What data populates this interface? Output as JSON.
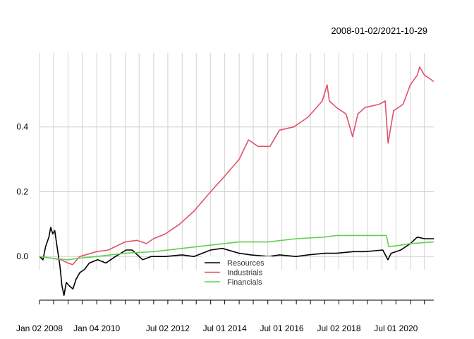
{
  "chart_data": {
    "type": "line",
    "title": "2008-01-02/2021-10-29",
    "xlabel": "",
    "ylabel": "",
    "x_range": [
      "2008-01-02",
      "2021-10-29"
    ],
    "ylim": [
      -0.15,
      0.6
    ],
    "grid": true,
    "legend_position": "bottom-center",
    "y_ticks": [
      {
        "value": 0.0,
        "label": "0.0"
      },
      {
        "value": 0.2,
        "label": "0.2"
      },
      {
        "value": 0.4,
        "label": "0.4"
      }
    ],
    "x_tick_labels": [
      {
        "date": "2008-01-02",
        "label": "Jan 02 2008"
      },
      {
        "date": "2010-01-04",
        "label": "Jan 04 2010"
      },
      {
        "date": "2012-07-02",
        "label": "Jul 02 2012"
      },
      {
        "date": "2014-07-01",
        "label": "Jul 01 2014"
      },
      {
        "date": "2016-07-01",
        "label": "Jul 01 2016"
      },
      {
        "date": "2018-07-02",
        "label": "Jul 02 2018"
      },
      {
        "date": "2020-07-01",
        "label": "Jul 01 2020"
      }
    ],
    "x_grid_dates": [
      "2008-01-02",
      "2008-07-01",
      "2009-01-02",
      "2009-07-01",
      "2010-01-04",
      "2010-07-01",
      "2011-01-03",
      "2011-07-01",
      "2012-01-03",
      "2012-07-02",
      "2013-01-02",
      "2013-07-01",
      "2014-01-02",
      "2014-07-01",
      "2015-01-02",
      "2015-07-01",
      "2016-01-04",
      "2016-07-01",
      "2017-01-03",
      "2017-07-03",
      "2018-01-02",
      "2018-07-02",
      "2019-01-02",
      "2019-07-01",
      "2020-01-02",
      "2020-07-01",
      "2021-01-04",
      "2021-07-01"
    ],
    "series": [
      {
        "name": "Resources",
        "color": "#000000",
        "points": [
          [
            "2008-01-02",
            0.0
          ],
          [
            "2008-02-15",
            -0.01
          ],
          [
            "2008-03-20",
            0.03
          ],
          [
            "2008-05-01",
            0.06
          ],
          [
            "2008-05-25",
            0.09
          ],
          [
            "2008-06-20",
            0.07
          ],
          [
            "2008-07-15",
            0.08
          ],
          [
            "2008-08-20",
            0.02
          ],
          [
            "2008-09-20",
            -0.03
          ],
          [
            "2008-10-15",
            -0.09
          ],
          [
            "2008-11-10",
            -0.12
          ],
          [
            "2008-12-10",
            -0.08
          ],
          [
            "2009-01-15",
            -0.09
          ],
          [
            "2009-03-05",
            -0.1
          ],
          [
            "2009-04-15",
            -0.07
          ],
          [
            "2009-06-01",
            -0.05
          ],
          [
            "2009-08-01",
            -0.04
          ],
          [
            "2009-10-01",
            -0.02
          ],
          [
            "2010-01-15",
            -0.01
          ],
          [
            "2010-05-01",
            -0.02
          ],
          [
            "2010-09-01",
            0.0
          ],
          [
            "2011-01-15",
            0.02
          ],
          [
            "2011-04-01",
            0.02
          ],
          [
            "2011-08-15",
            -0.01
          ],
          [
            "2011-12-01",
            0.0
          ],
          [
            "2012-06-01",
            0.0
          ],
          [
            "2013-01-01",
            0.005
          ],
          [
            "2013-06-01",
            0.0
          ],
          [
            "2014-01-01",
            0.02
          ],
          [
            "2014-06-01",
            0.025
          ],
          [
            "2015-01-01",
            0.01
          ],
          [
            "2015-06-01",
            0.005
          ],
          [
            "2016-01-15",
            0.0
          ],
          [
            "2016-06-01",
            0.005
          ],
          [
            "2017-01-01",
            0.0
          ],
          [
            "2017-06-01",
            0.005
          ],
          [
            "2018-01-01",
            0.01
          ],
          [
            "2018-06-01",
            0.01
          ],
          [
            "2019-01-01",
            0.015
          ],
          [
            "2019-06-01",
            0.015
          ],
          [
            "2020-01-15",
            0.02
          ],
          [
            "2020-03-20",
            -0.01
          ],
          [
            "2020-05-01",
            0.01
          ],
          [
            "2020-09-01",
            0.02
          ],
          [
            "2021-01-01",
            0.04
          ],
          [
            "2021-04-01",
            0.06
          ],
          [
            "2021-07-01",
            0.055
          ],
          [
            "2021-10-29",
            0.055
          ]
        ]
      },
      {
        "name": "Industrials",
        "color": "#DF536B",
        "points": [
          [
            "2008-01-02",
            0.0
          ],
          [
            "2008-06-01",
            -0.005
          ],
          [
            "2008-10-01",
            -0.01
          ],
          [
            "2009-01-01",
            -0.02
          ],
          [
            "2009-03-01",
            -0.025
          ],
          [
            "2009-06-01",
            0.0
          ],
          [
            "2010-01-01",
            0.015
          ],
          [
            "2010-06-01",
            0.02
          ],
          [
            "2011-01-01",
            0.045
          ],
          [
            "2011-06-01",
            0.05
          ],
          [
            "2011-10-01",
            0.04
          ],
          [
            "2012-01-01",
            0.055
          ],
          [
            "2012-06-01",
            0.07
          ],
          [
            "2012-12-01",
            0.1
          ],
          [
            "2013-06-01",
            0.14
          ],
          [
            "2014-01-01",
            0.2
          ],
          [
            "2014-06-01",
            0.24
          ],
          [
            "2015-01-01",
            0.3
          ],
          [
            "2015-05-01",
            0.36
          ],
          [
            "2015-09-01",
            0.34
          ],
          [
            "2016-02-01",
            0.34
          ],
          [
            "2016-06-01",
            0.39
          ],
          [
            "2016-12-01",
            0.4
          ],
          [
            "2017-06-01",
            0.43
          ],
          [
            "2017-12-01",
            0.48
          ],
          [
            "2018-02-01",
            0.53
          ],
          [
            "2018-03-01",
            0.48
          ],
          [
            "2018-06-01",
            0.46
          ],
          [
            "2018-10-01",
            0.44
          ],
          [
            "2018-12-24",
            0.37
          ],
          [
            "2019-03-01",
            0.44
          ],
          [
            "2019-06-01",
            0.46
          ],
          [
            "2019-12-01",
            0.47
          ],
          [
            "2020-02-15",
            0.48
          ],
          [
            "2020-03-23",
            0.35
          ],
          [
            "2020-06-01",
            0.45
          ],
          [
            "2020-10-01",
            0.47
          ],
          [
            "2021-01-01",
            0.53
          ],
          [
            "2021-04-01",
            0.56
          ],
          [
            "2021-05-01",
            0.585
          ],
          [
            "2021-07-01",
            0.56
          ],
          [
            "2021-09-01",
            0.55
          ],
          [
            "2021-10-29",
            0.54
          ]
        ]
      },
      {
        "name": "Financials",
        "color": "#61D04F",
        "points": [
          [
            "2008-01-02",
            0.0
          ],
          [
            "2008-06-01",
            -0.005
          ],
          [
            "2009-01-01",
            -0.01
          ],
          [
            "2009-06-01",
            -0.005
          ],
          [
            "2010-01-01",
            0.0
          ],
          [
            "2011-01-01",
            0.01
          ],
          [
            "2012-01-01",
            0.015
          ],
          [
            "2013-01-01",
            0.025
          ],
          [
            "2014-01-01",
            0.035
          ],
          [
            "2015-01-01",
            0.045
          ],
          [
            "2016-01-01",
            0.045
          ],
          [
            "2017-01-01",
            0.055
          ],
          [
            "2018-01-01",
            0.06
          ],
          [
            "2018-06-01",
            0.065
          ],
          [
            "2019-06-01",
            0.065
          ],
          [
            "2020-03-01",
            0.065
          ],
          [
            "2020-04-01",
            0.03
          ],
          [
            "2020-09-01",
            0.035
          ],
          [
            "2021-01-01",
            0.04
          ],
          [
            "2021-10-29",
            0.045
          ]
        ]
      }
    ]
  }
}
